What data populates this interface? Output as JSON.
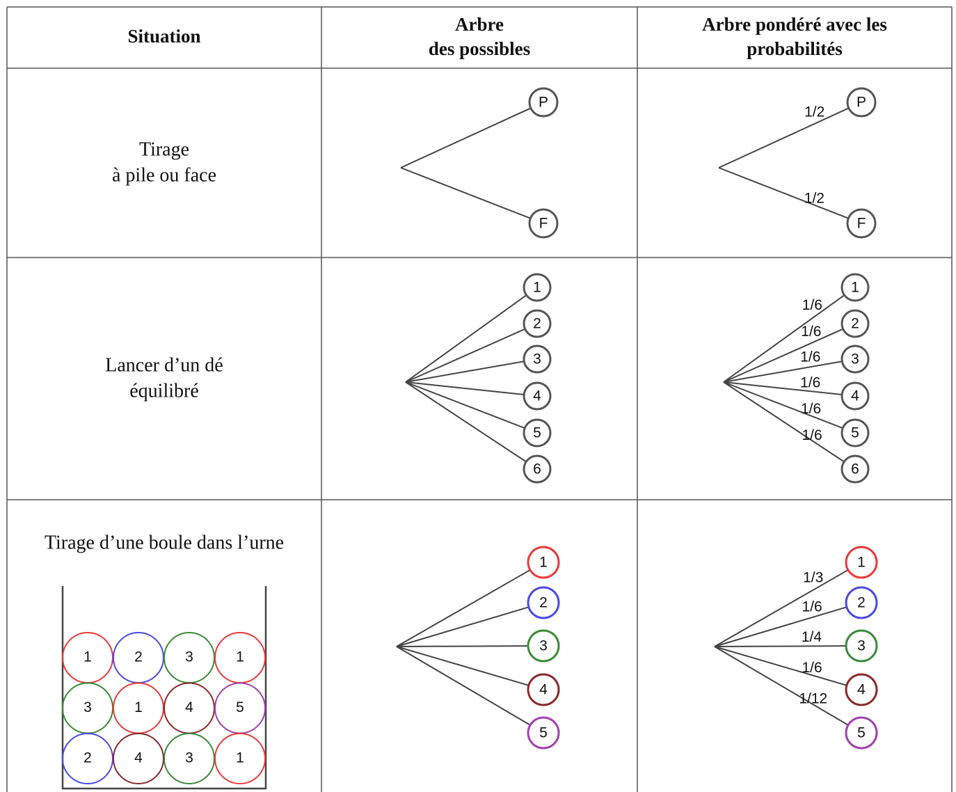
{
  "table": {
    "header": [
      [
        "Situation"
      ],
      [
        "Arbre",
        "des possibles"
      ],
      [
        "Arbre pondéré avec les",
        "probabilités"
      ]
    ],
    "rows": [
      {
        "situation": [
          "Tirage",
          "à pile ou face"
        ],
        "outcomes": [
          "P",
          "F"
        ],
        "probabilities": [
          "1/2",
          "1/2"
        ]
      },
      {
        "situation": [
          "Lancer d’un dé",
          "équilibré"
        ],
        "outcomes": [
          "1",
          "2",
          "3",
          "4",
          "5",
          "6"
        ],
        "probabilities": [
          "1/6",
          "1/6",
          "1/6",
          "1/6",
          "1/6",
          "1/6"
        ]
      },
      {
        "situation": [
          "Tirage d’une boule dans l’urne"
        ],
        "outcomes": [
          "1",
          "2",
          "3",
          "4",
          "5"
        ],
        "probabilities": [
          "1/3",
          "1/6",
          "1/4",
          "1/6",
          "1/12"
        ],
        "colors": [
          "#e83a3a",
          "#4a4ae6",
          "#3a8a3a",
          "#8a2a2a",
          "#a040b0"
        ],
        "urn": [
          [
            "1",
            "2",
            "3",
            "1"
          ],
          [
            "3",
            "1",
            "4",
            "5"
          ],
          [
            "2",
            "4",
            "3",
            "1"
          ]
        ]
      }
    ]
  }
}
